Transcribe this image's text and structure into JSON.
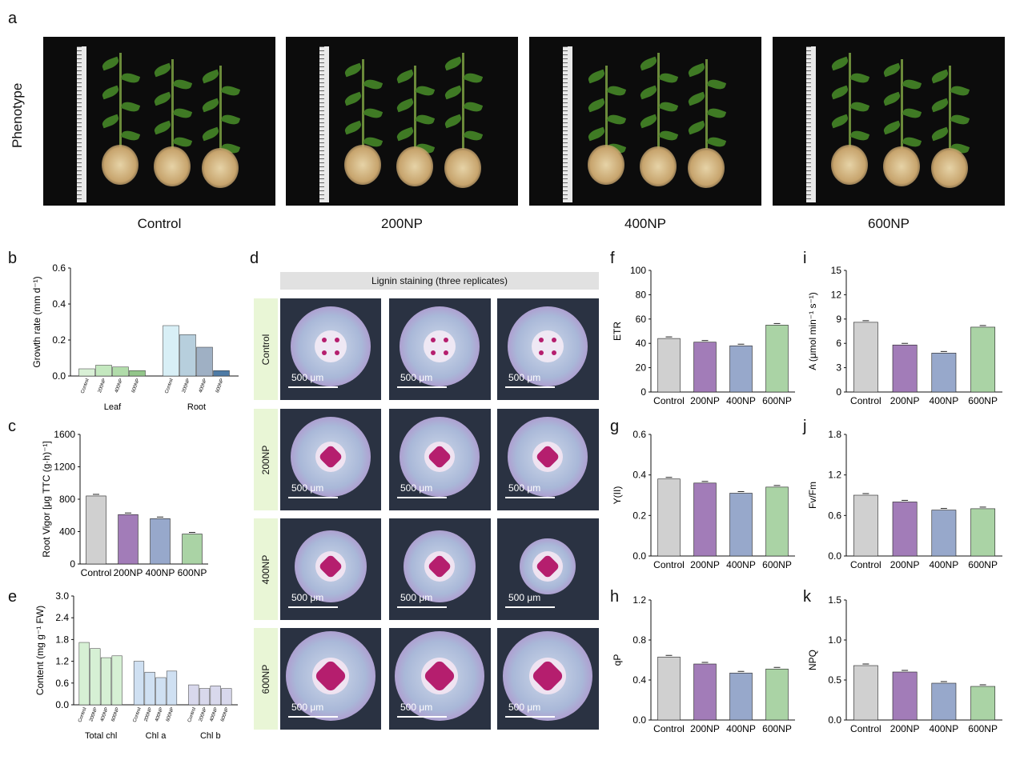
{
  "panel_letters": {
    "a": "a",
    "b": "b",
    "c": "c",
    "d": "d",
    "e": "e",
    "f": "f",
    "g": "g",
    "h": "h",
    "i": "i",
    "j": "j",
    "k": "k"
  },
  "phenotype": {
    "row_label": "Phenotype",
    "captions": [
      "Control",
      "200NP",
      "400NP",
      "600NP"
    ]
  },
  "lignin": {
    "header": "Lignin staining (three replicates)",
    "rows": [
      "Control",
      "200NP",
      "400NP",
      "600NP"
    ],
    "scale_label": "500 μm"
  },
  "chart_data": [
    {
      "panel": "b",
      "type": "bar",
      "ylabel": "Growth rate (mm d⁻¹)",
      "ylim": [
        0,
        0.6
      ],
      "yticks": [
        "0.0",
        "0.2",
        "0.4",
        "0.6"
      ],
      "groups": [
        {
          "name": "Leaf",
          "categories": [
            "Control",
            "200NP",
            "400NP",
            "600NP"
          ],
          "values": [
            0.04,
            0.06,
            0.05,
            0.03
          ]
        },
        {
          "name": "Root",
          "categories": [
            "Control",
            "200NP",
            "400NP",
            "600NP"
          ],
          "values": [
            0.28,
            0.23,
            0.16,
            0.03
          ]
        }
      ],
      "colors": [
        "#d8eff6",
        "#b7cfdd",
        "#9fb0c4",
        "#4e7ba6"
      ],
      "leaf_colors": [
        "#d9f0d6",
        "#c4e8bf",
        "#b1dcaa",
        "#93c68a"
      ]
    },
    {
      "panel": "c",
      "type": "bar",
      "ylabel": "Root Vigor [μg TTC (g·h)⁻¹]",
      "categories": [
        "Control",
        "200NP",
        "400NP",
        "600NP"
      ],
      "values": [
        840,
        610,
        560,
        370
      ],
      "ylim": [
        0,
        1600
      ],
      "yticks": [
        "0",
        "400",
        "800",
        "1200",
        "1600"
      ],
      "colors": [
        "#d0d0d0",
        "#a27cb8",
        "#97a8cb",
        "#aad3a5"
      ]
    },
    {
      "panel": "e",
      "type": "bar",
      "ylabel": "Content (mg g⁻¹ FW)",
      "ylim": [
        0,
        3.0
      ],
      "yticks": [
        "0.0",
        "0.6",
        "1.2",
        "1.8",
        "2.4",
        "3.0"
      ],
      "groups": [
        {
          "name": "Total chl",
          "categories": [
            "Control",
            "200NP",
            "400NP",
            "600NP"
          ],
          "values": [
            1.72,
            1.55,
            1.3,
            1.35
          ]
        },
        {
          "name": "Chl a",
          "categories": [
            "Control",
            "200NP",
            "400NP",
            "600NP"
          ],
          "values": [
            1.2,
            0.9,
            0.75,
            0.93
          ]
        },
        {
          "name": "Chl b",
          "categories": [
            "Control",
            "200NP",
            "400NP",
            "600NP"
          ],
          "values": [
            0.55,
            0.45,
            0.52,
            0.45
          ]
        }
      ],
      "group_colors": [
        "#d6f0d4",
        "#cfe0f2",
        "#d8d8ec"
      ]
    },
    {
      "panel": "f",
      "type": "bar",
      "ylabel": "ETR",
      "categories": [
        "Control",
        "200NP",
        "400NP",
        "600NP"
      ],
      "values": [
        44,
        41,
        38,
        55
      ],
      "ylim": [
        0,
        100
      ],
      "yticks": [
        "0",
        "20",
        "40",
        "60",
        "80",
        "100"
      ],
      "colors": [
        "#d0d0d0",
        "#a27cb8",
        "#97a8cb",
        "#aad3a5"
      ]
    },
    {
      "panel": "g",
      "type": "bar",
      "ylabel": "Y(II)",
      "categories": [
        "Control",
        "200NP",
        "400NP",
        "600NP"
      ],
      "values": [
        0.38,
        0.36,
        0.31,
        0.34
      ],
      "ylim": [
        0,
        0.6
      ],
      "yticks": [
        "0.0",
        "0.2",
        "0.4",
        "0.6"
      ],
      "colors": [
        "#d0d0d0",
        "#a27cb8",
        "#97a8cb",
        "#aad3a5"
      ]
    },
    {
      "panel": "h",
      "type": "bar",
      "ylabel": "qP",
      "categories": [
        "Control",
        "200NP",
        "400NP",
        "600NP"
      ],
      "values": [
        0.63,
        0.56,
        0.47,
        0.51
      ],
      "ylim": [
        0,
        1.2
      ],
      "yticks": [
        "0.0",
        "0.4",
        "0.8",
        "1.2"
      ],
      "colors": [
        "#d0d0d0",
        "#a27cb8",
        "#97a8cb",
        "#aad3a5"
      ]
    },
    {
      "panel": "i",
      "type": "bar",
      "ylabel": "A (μmol min⁻¹ s⁻¹)",
      "categories": [
        "Control",
        "200NP",
        "400NP",
        "600NP"
      ],
      "values": [
        8.6,
        5.8,
        4.8,
        8.0
      ],
      "ylim": [
        0,
        15
      ],
      "yticks": [
        "0",
        "3",
        "6",
        "9",
        "12",
        "15"
      ],
      "colors": [
        "#d0d0d0",
        "#a27cb8",
        "#97a8cb",
        "#aad3a5"
      ]
    },
    {
      "panel": "j",
      "type": "bar",
      "ylabel": "Fv/Fm",
      "categories": [
        "Control",
        "200NP",
        "400NP",
        "600NP"
      ],
      "values": [
        0.9,
        0.8,
        0.68,
        0.7
      ],
      "ylim": [
        0,
        1.8
      ],
      "yticks": [
        "0.0",
        "0.6",
        "1.2",
        "1.8"
      ],
      "colors": [
        "#d0d0d0",
        "#a27cb8",
        "#97a8cb",
        "#aad3a5"
      ]
    },
    {
      "panel": "k",
      "type": "bar",
      "ylabel": "NPQ",
      "categories": [
        "Control",
        "200NP",
        "400NP",
        "600NP"
      ],
      "values": [
        0.68,
        0.6,
        0.46,
        0.42
      ],
      "ylim": [
        0,
        1.5
      ],
      "yticks": [
        "0.0",
        "0.5",
        "1.0",
        "1.5"
      ],
      "colors": [
        "#d0d0d0",
        "#a27cb8",
        "#97a8cb",
        "#aad3a5"
      ]
    }
  ]
}
